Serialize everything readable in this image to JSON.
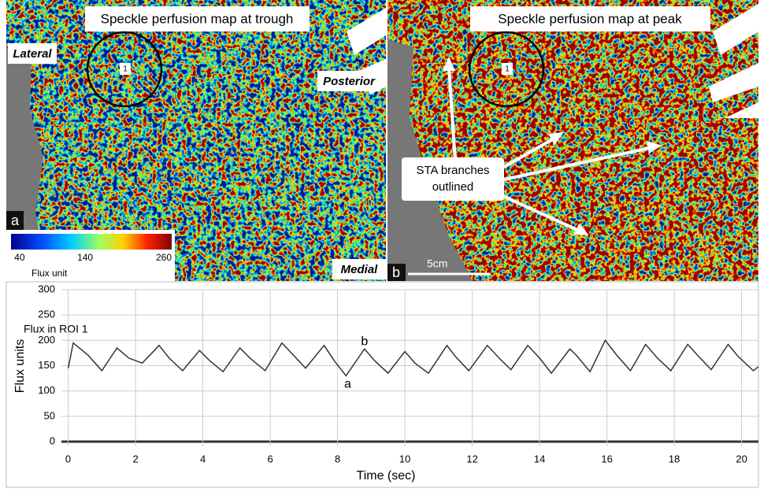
{
  "panels": {
    "left": {
      "title": "Speckle perfusion map at trough",
      "letter": "a",
      "roi": "1",
      "lateral": "Lateral",
      "posterior": "Posterior",
      "medial": "Medial",
      "colorbar": {
        "label": "Flux unit",
        "lim": [
          27,
          272
        ],
        "ticks": [
          40,
          140,
          260
        ]
      }
    },
    "right": {
      "title": "Speckle perfusion map at peak",
      "letter": "b",
      "roi": "1",
      "scale": "5cm",
      "callout": [
        "STA branches",
        "outlined"
      ]
    }
  },
  "chart_data": {
    "type": "line",
    "annotation_title": "Flux in ROI 1",
    "y_label": "Flux units",
    "x_label": "Time (sec)",
    "x": [
      0,
      0.15,
      0.6,
      1.0,
      1.45,
      1.8,
      2.2,
      2.7,
      3.0,
      3.4,
      3.9,
      4.2,
      4.6,
      5.1,
      5.4,
      5.85,
      6.35,
      6.7,
      7.05,
      7.6,
      7.9,
      8.25,
      8.8,
      9.1,
      9.5,
      10.0,
      10.3,
      10.7,
      11.25,
      11.5,
      11.9,
      12.45,
      12.8,
      13.15,
      13.65,
      14.0,
      14.35,
      14.9,
      15.1,
      15.5,
      15.95,
      16.3,
      16.7,
      17.15,
      17.5,
      17.9,
      18.4,
      18.7,
      19.1,
      19.6,
      19.9,
      20.35,
      20.5
    ],
    "series": [
      {
        "color": "#333333",
        "values": [
          145,
          195,
          170,
          140,
          185,
          165,
          155,
          190,
          165,
          140,
          180,
          160,
          138,
          185,
          165,
          140,
          195,
          170,
          145,
          190,
          160,
          130,
          183,
          160,
          135,
          178,
          155,
          135,
          190,
          168,
          140,
          190,
          165,
          142,
          190,
          165,
          135,
          183,
          170,
          138,
          200,
          170,
          140,
          192,
          165,
          140,
          192,
          170,
          142,
          192,
          168,
          140,
          148
        ]
      }
    ],
    "annotations": [
      {
        "text": "a",
        "x": 8.3,
        "y": 113
      },
      {
        "text": "b",
        "x": 8.8,
        "y": 197
      }
    ],
    "xlim": [
      -0.2,
      20.5
    ],
    "ylim": [
      0,
      300
    ],
    "xticks": [
      0,
      2,
      4,
      6,
      8,
      10,
      12,
      14,
      16,
      18,
      20
    ],
    "yticks": [
      0,
      50,
      100,
      150,
      200,
      250,
      300
    ],
    "grid": true
  }
}
